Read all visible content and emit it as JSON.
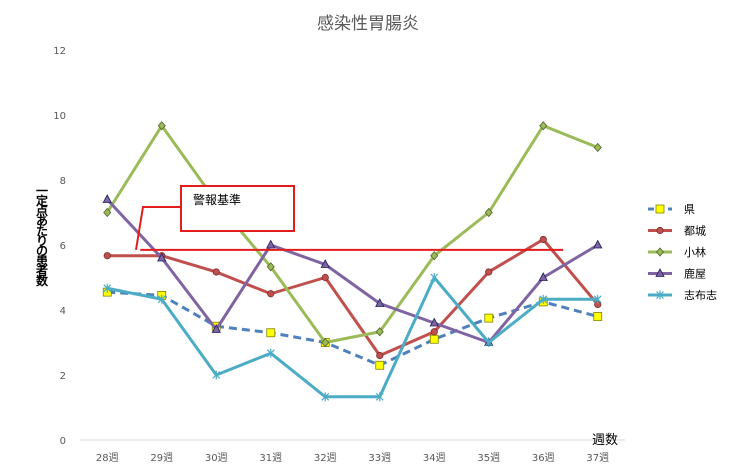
{
  "chart_data": {
    "type": "line",
    "title": "感染性胃腸炎",
    "xlabel": "週数",
    "ylabel": "一定点あたりの患者数",
    "categories": [
      "28週",
      "29週",
      "30週",
      "31週",
      "32週",
      "33週",
      "34週",
      "35週",
      "36週",
      "37週"
    ],
    "ylim": [
      0,
      12
    ],
    "yticks": [
      "0",
      "2",
      "4",
      "6",
      "8",
      "10",
      "12"
    ],
    "grid": false,
    "legend_position": "right",
    "series": [
      {
        "name": "県",
        "values": [
          4.55,
          4.45,
          3.5,
          3.3,
          3.0,
          2.3,
          3.1,
          3.75,
          4.25,
          3.8
        ],
        "color": "#4f81bd",
        "marker": "square",
        "dashed": true
      },
      {
        "name": "都城",
        "values": [
          5.67,
          5.67,
          5.17,
          4.5,
          5.0,
          2.6,
          3.33,
          5.17,
          6.17,
          4.17
        ],
        "color": "#c0504d",
        "marker": "circle",
        "dashed": false
      },
      {
        "name": "小林",
        "values": [
          7.0,
          9.67,
          7.33,
          5.33,
          3.0,
          3.33,
          5.67,
          7.0,
          9.67,
          9.0
        ],
        "color": "#9bbb59",
        "marker": "diamond",
        "dashed": false
      },
      {
        "name": "鹿屋",
        "values": [
          7.4,
          5.6,
          3.4,
          6.0,
          5.4,
          4.2,
          3.6,
          3.0,
          5.0,
          6.0
        ],
        "color": "#8064a2",
        "marker": "triangle",
        "dashed": false
      },
      {
        "name": "志布志",
        "values": [
          4.67,
          4.33,
          2.0,
          2.67,
          1.33,
          1.33,
          5.0,
          3.0,
          4.33,
          4.33
        ],
        "color": "#4bacc6",
        "marker": "star",
        "dashed": false
      }
    ],
    "annotation": {
      "text": "警報基準",
      "value": 5.85,
      "color": "#e31c1c"
    }
  }
}
